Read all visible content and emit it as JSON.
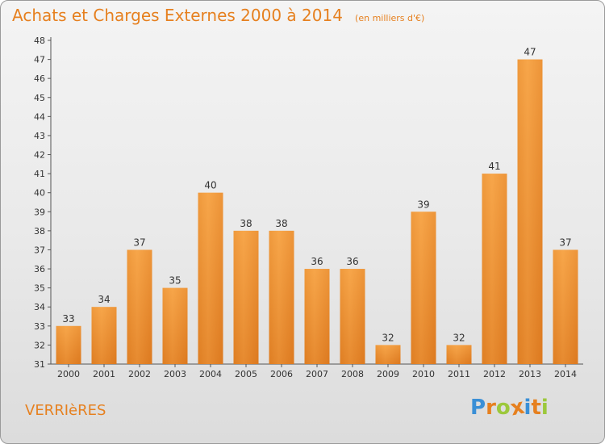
{
  "chart_data": {
    "type": "bar",
    "title": "Achats et Charges Externes 2000 à 2014",
    "subtitle": "(en milliers d'€)",
    "categories": [
      "2000",
      "2001",
      "2002",
      "2003",
      "2004",
      "2005",
      "2006",
      "2007",
      "2008",
      "2009",
      "2010",
      "2011",
      "2012",
      "2013",
      "2014"
    ],
    "values": [
      33,
      34,
      37,
      35,
      40,
      38,
      38,
      36,
      36,
      32,
      39,
      32,
      41,
      47,
      37
    ],
    "ylim": [
      31,
      48
    ],
    "yticks": [
      31,
      32,
      33,
      34,
      35,
      36,
      37,
      38,
      39,
      40,
      41,
      42,
      43,
      44,
      45,
      46,
      47,
      48
    ],
    "grid": false,
    "legend": "none",
    "bar_color": "#f39c3c",
    "bar_color_dark": "#d9741b"
  },
  "location_label": "VERRIèRES",
  "logo": {
    "letters": [
      "P",
      "r",
      "o",
      "x",
      "i",
      "t",
      "i"
    ],
    "colors": [
      "#3a8fd6",
      "#e6801f",
      "#9cc83c",
      "#e6801f",
      "#3a8fd6",
      "#e6801f",
      "#9cc83c"
    ]
  }
}
